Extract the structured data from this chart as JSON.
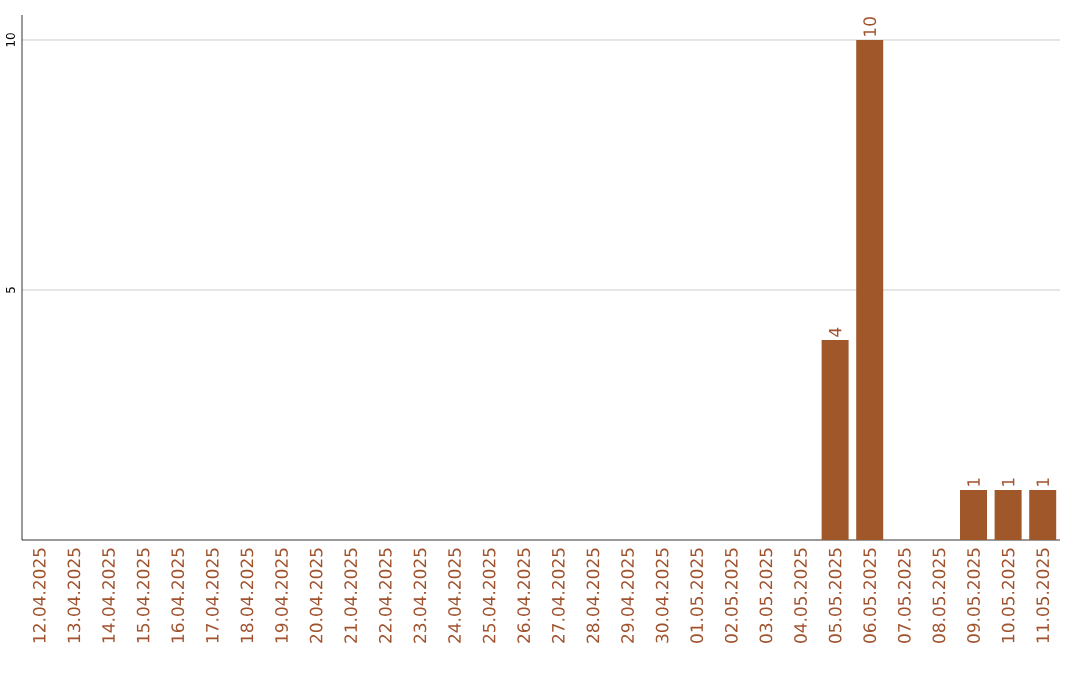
{
  "chart_data": {
    "type": "bar",
    "categories": [
      "12.04.2025",
      "13.04.2025",
      "14.04.2025",
      "15.04.2025",
      "16.04.2025",
      "17.04.2025",
      "18.04.2025",
      "19.04.2025",
      "20.04.2025",
      "21.04.2025",
      "22.04.2025",
      "23.04.2025",
      "24.04.2025",
      "25.04.2025",
      "26.04.2025",
      "27.04.2025",
      "28.04.2025",
      "29.04.2025",
      "30.04.2025",
      "01.05.2025",
      "02.05.2025",
      "03.05.2025",
      "04.05.2025",
      "05.05.2025",
      "06.05.2025",
      "07.05.2025",
      "08.05.2025",
      "09.05.2025",
      "10.05.2025",
      "11.05.2025"
    ],
    "values": [
      null,
      null,
      null,
      null,
      null,
      null,
      null,
      null,
      null,
      null,
      null,
      null,
      null,
      null,
      null,
      null,
      null,
      null,
      null,
      null,
      null,
      null,
      null,
      4,
      10,
      null,
      null,
      1,
      1,
      1
    ],
    "color": "#a0572a",
    "ylim": [
      0,
      10.5
    ],
    "yticks": [
      5,
      10
    ],
    "grid": "y",
    "data_labels": true
  }
}
